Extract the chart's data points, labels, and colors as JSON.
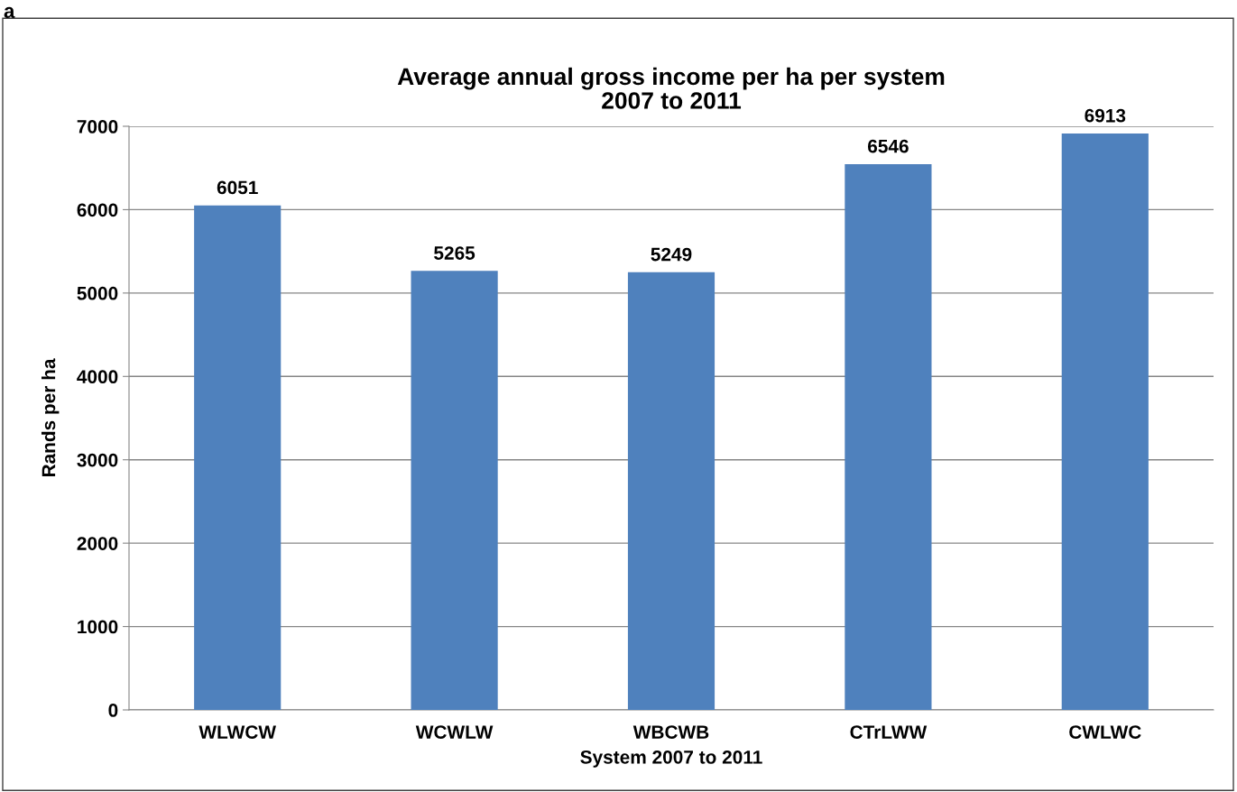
{
  "chart_data": {
    "type": "bar",
    "title": "Average annual gross income per ha per system\n2007 to 2011",
    "xlabel": "System 2007 to 2011",
    "ylabel": "Rands per ha",
    "annotations": [
      "a"
    ],
    "categories": [
      "WLWCW",
      "WCWLW",
      "WBCWB",
      "CTrLWW",
      "CWLWC"
    ],
    "values": [
      6051,
      5265,
      5249,
      6546,
      6913
    ],
    "color": "#4f81bd",
    "ylim": [
      0,
      7000
    ],
    "yticks": [
      0,
      1000,
      2000,
      3000,
      4000,
      5000,
      6000,
      7000
    ],
    "grid": "y",
    "data_labels": true
  }
}
